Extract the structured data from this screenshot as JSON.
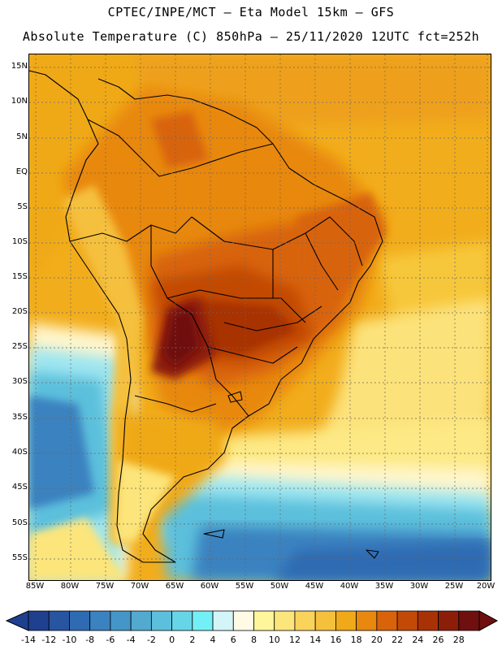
{
  "title": {
    "line1": "CPTEC/INPE/MCT – Eta Model 15km – GFS",
    "line2": "Absolute Temperature (C) 850hPa – 25/11/2020 12UTC fct=252h"
  },
  "map": {
    "region": "South America",
    "lat_labels": [
      "15N",
      "10N",
      "5N",
      "EQ",
      "5S",
      "10S",
      "15S",
      "20S",
      "25S",
      "30S",
      "35S",
      "40S",
      "45S",
      "50S",
      "55S"
    ],
    "lon_labels": [
      "85W",
      "80W",
      "75W",
      "70W",
      "65W",
      "60W",
      "55W",
      "50W",
      "45W",
      "40W",
      "35W",
      "30W",
      "25W",
      "20W"
    ]
  },
  "colorbar": {
    "labels": [
      "-14",
      "-12",
      "-10",
      "-8",
      "-6",
      "-4",
      "-2",
      "0",
      "2",
      "4",
      "6",
      "8",
      "10",
      "12",
      "14",
      "16",
      "18",
      "20",
      "22",
      "24",
      "26",
      "28"
    ],
    "colors": [
      "#1f3f8f",
      "#2755a0",
      "#2f6bb2",
      "#3a82c0",
      "#4596c8",
      "#52aad0",
      "#5cc0dc",
      "#66d6e6",
      "#73f0f5",
      "#d3f5f8",
      "#fffae6",
      "#fff59a",
      "#fce57a",
      "#f9d35a",
      "#f5c03c",
      "#f0a918",
      "#e8880f",
      "#d8630a",
      "#c24a06",
      "#a83205",
      "#8c1e08",
      "#700f10"
    ]
  }
}
